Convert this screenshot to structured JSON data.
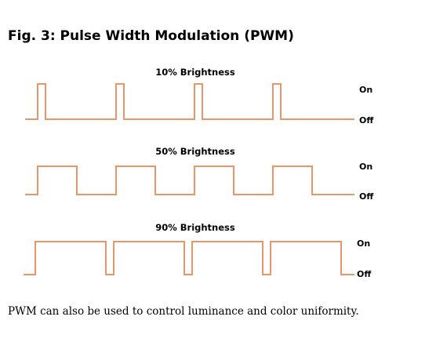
{
  "figure": {
    "title": "Fig. 3:  Pulse Width Modulation (PWM)",
    "caption": "PWM can also be used to control luminance and color uniformity.",
    "wave_color": "#e8956a",
    "on_label": "On",
    "off_label": "Off"
  },
  "panels": [
    {
      "title": "10% Brightness",
      "duty_cycle": 0.1,
      "pulses": 4
    },
    {
      "title": "50% Brightness",
      "duty_cycle": 0.5,
      "pulses": 4
    },
    {
      "title": "90% Brightness",
      "duty_cycle": 0.9,
      "pulses": 4
    }
  ]
}
